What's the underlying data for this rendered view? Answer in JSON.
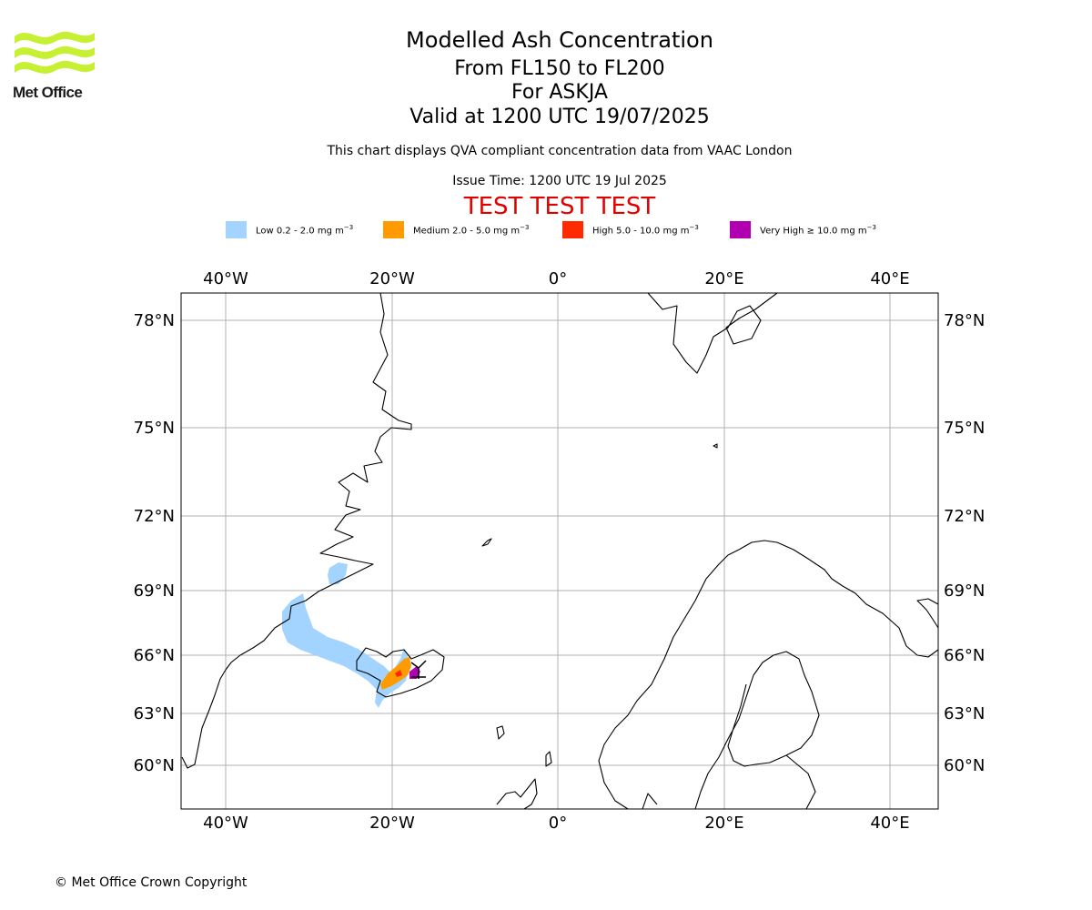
{
  "logo": {
    "text": "Met Office",
    "colors": {
      "waves": "#c7f032",
      "text": "#1a1a1a"
    }
  },
  "titles": {
    "main": "Modelled Ash Concentration",
    "levels": "From FL150 to FL200",
    "volcano": "For ASKJA",
    "valid": "Valid at 1200 UTC 19/07/2025",
    "description": "This chart displays QVA compliant concentration data from VAAC London",
    "issue": "Issue Time: 1200 UTC 19 Jul 2025",
    "test_banner": "TEST TEST TEST"
  },
  "legend": [
    {
      "label": "Low 0.2 - 2.0 mg m",
      "color": "#a3d4ff"
    },
    {
      "label": "Medium 2.0 - 5.0 mg m",
      "color": "#ff9a00"
    },
    {
      "label": "High 5.0 - 10.0 mg m",
      "color": "#ff2a00"
    },
    {
      "label": "Very High  ≥  10.0 mg m",
      "color": "#b000b0"
    }
  ],
  "legend_unit_exponent": "−3",
  "map": {
    "longitude_labels": [
      "40°W",
      "20°W",
      "0°",
      "20°E",
      "40°E"
    ],
    "latitude_labels": [
      "78°N",
      "75°N",
      "72°N",
      "69°N",
      "66°N",
      "63°N",
      "60°N"
    ],
    "grid": true,
    "coastline_color": "#000000",
    "volcano_marker": {
      "name": "ASKJA",
      "color": "#000000"
    }
  },
  "copyright": "© Met Office Crown Copyright"
}
